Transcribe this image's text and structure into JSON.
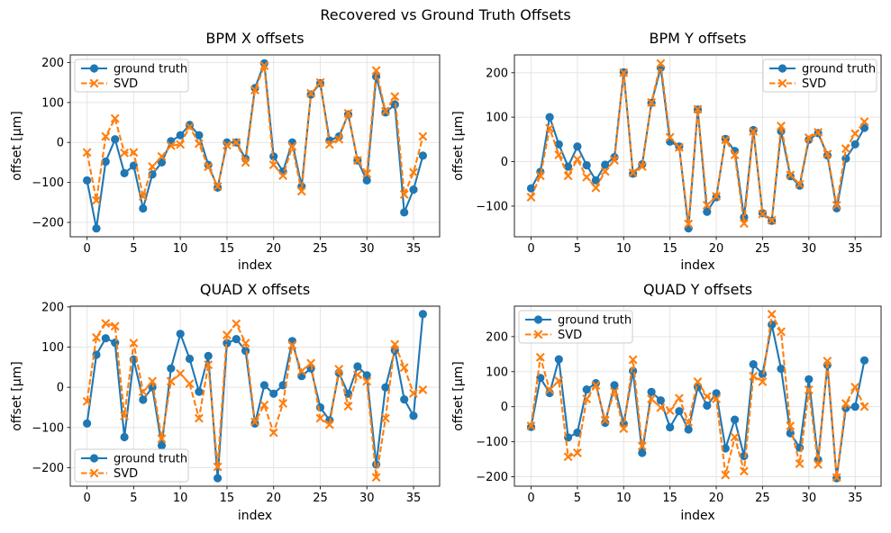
{
  "figure": {
    "suptitle": "Recovered vs Ground Truth Offsets"
  },
  "colors": {
    "ground_truth": "#1f77b4",
    "svd": "#ff7f0e",
    "grid": "#e5e5e5",
    "spine": "#262626",
    "legend_border": "#cccccc"
  },
  "chart_data": [
    {
      "type": "line",
      "id": "bpm-x",
      "title": "BPM X offsets",
      "xlabel": "index",
      "ylabel": "offset [µm]",
      "grid": true,
      "legend_loc": "upper left",
      "xticks": [
        0,
        5,
        10,
        15,
        20,
        25,
        30,
        35
      ],
      "yticks": [
        -200,
        -100,
        0,
        100,
        200
      ],
      "xlim": [
        -1.8,
        37.8
      ],
      "ylim": [
        -236,
        219
      ],
      "x": [
        0,
        1,
        2,
        3,
        4,
        5,
        6,
        7,
        8,
        9,
        10,
        11,
        12,
        13,
        14,
        15,
        16,
        17,
        18,
        19,
        20,
        21,
        22,
        23,
        24,
        25,
        26,
        27,
        28,
        29,
        30,
        31,
        32,
        33,
        34,
        35,
        36
      ],
      "series": [
        {
          "name": "ground truth",
          "color": "#1f77b4",
          "line": "solid",
          "marker": "circle",
          "values": [
            -95,
            -215,
            -48,
            8,
            -77,
            -58,
            -165,
            -80,
            -50,
            3,
            18,
            44,
            18,
            -56,
            -113,
            0,
            0,
            -41,
            136,
            198,
            -35,
            -73,
            0,
            -110,
            120,
            148,
            5,
            15,
            70,
            -45,
            -95,
            165,
            75,
            95,
            -175,
            -118,
            -33
          ]
        },
        {
          "name": "SVD",
          "color": "#ff7f0e",
          "line": "dashed",
          "marker": "x",
          "values": [
            -25,
            -145,
            15,
            60,
            -26,
            -25,
            -135,
            -60,
            -35,
            -8,
            -5,
            39,
            -3,
            -61,
            -110,
            -7,
            0,
            -50,
            131,
            192,
            -56,
            -83,
            -10,
            -122,
            123,
            150,
            -5,
            8,
            73,
            -45,
            -78,
            180,
            78,
            115,
            -130,
            -75,
            15
          ]
        }
      ]
    },
    {
      "type": "line",
      "id": "bpm-y",
      "title": "BPM Y offsets",
      "xlabel": "index",
      "ylabel": "offset [µm]",
      "grid": true,
      "legend_loc": "upper right",
      "xticks": [
        0,
        5,
        10,
        15,
        20,
        25,
        30,
        35
      ],
      "yticks": [
        -100,
        0,
        100,
        200
      ],
      "xlim": [
        -1.8,
        37.8
      ],
      "ylim": [
        -169,
        240
      ],
      "x": [
        0,
        1,
        2,
        3,
        4,
        5,
        6,
        7,
        8,
        9,
        10,
        11,
        12,
        13,
        14,
        15,
        16,
        17,
        18,
        19,
        20,
        21,
        22,
        23,
        24,
        25,
        26,
        27,
        28,
        29,
        30,
        31,
        32,
        33,
        34,
        35,
        36
      ],
      "series": [
        {
          "name": "ground truth",
          "color": "#1f77b4",
          "line": "solid",
          "marker": "circle",
          "values": [
            -60,
            -23,
            100,
            39,
            -11,
            34,
            -8,
            -42,
            -7,
            10,
            201,
            -27,
            -6,
            132,
            211,
            45,
            34,
            -150,
            117,
            -113,
            -80,
            51,
            24,
            -125,
            71,
            -116,
            -133,
            68,
            -33,
            -54,
            49,
            64,
            14,
            -105,
            7,
            39,
            76
          ]
        },
        {
          "name": "SVD",
          "color": "#ff7f0e",
          "line": "dashed",
          "marker": "x",
          "values": [
            -80,
            -32,
            75,
            15,
            -32,
            5,
            -35,
            -59,
            -22,
            3,
            200,
            -25,
            -11,
            133,
            221,
            55,
            32,
            -140,
            118,
            -98,
            -78,
            49,
            15,
            -139,
            68,
            -118,
            -132,
            80,
            -30,
            -51,
            54,
            66,
            17,
            -98,
            29,
            63,
            90
          ]
        }
      ]
    },
    {
      "type": "line",
      "id": "quad-x",
      "title": "QUAD X offsets",
      "xlabel": "index",
      "ylabel": "offset [µm]",
      "grid": true,
      "legend_loc": "lower left",
      "xticks": [
        0,
        5,
        10,
        15,
        20,
        25,
        30,
        35
      ],
      "yticks": [
        -200,
        -100,
        0,
        100,
        200
      ],
      "xlim": [
        -1.8,
        37.8
      ],
      "ylim": [
        -246,
        202
      ],
      "x": [
        0,
        1,
        2,
        3,
        4,
        5,
        6,
        7,
        8,
        9,
        10,
        11,
        12,
        13,
        14,
        15,
        16,
        17,
        18,
        19,
        20,
        21,
        22,
        23,
        24,
        25,
        26,
        27,
        28,
        29,
        30,
        31,
        32,
        33,
        34,
        35,
        36
      ],
      "series": [
        {
          "name": "ground truth",
          "color": "#1f77b4",
          "line": "solid",
          "marker": "circle",
          "values": [
            -90,
            81,
            122,
            111,
            -124,
            69,
            -31,
            0,
            -145,
            47,
            133,
            71,
            -11,
            78,
            -226,
            110,
            120,
            91,
            -90,
            5,
            -16,
            5,
            115,
            28,
            47,
            -50,
            -82,
            36,
            -16,
            52,
            30,
            -192,
            0,
            92,
            -30,
            -71,
            182
          ]
        },
        {
          "name": "SVD",
          "color": "#ff7f0e",
          "line": "dashed",
          "marker": "x",
          "values": [
            -35,
            124,
            159,
            152,
            -71,
            110,
            -11,
            15,
            -128,
            15,
            34,
            9,
            -77,
            56,
            -198,
            130,
            158,
            110,
            -86,
            -44,
            -113,
            -40,
            105,
            40,
            60,
            -77,
            -93,
            45,
            -47,
            31,
            15,
            -224,
            -77,
            107,
            49,
            -15,
            -6
          ]
        }
      ]
    },
    {
      "type": "line",
      "id": "quad-y",
      "title": "QUAD Y offsets",
      "xlabel": "index",
      "ylabel": "offset [µm]",
      "grid": true,
      "legend_loc": "upper left",
      "xticks": [
        0,
        5,
        10,
        15,
        20,
        25,
        30,
        35
      ],
      "yticks": [
        -200,
        -100,
        0,
        100,
        200
      ],
      "xlim": [
        -1.8,
        37.8
      ],
      "ylim": [
        -227,
        287
      ],
      "x": [
        0,
        1,
        2,
        3,
        4,
        5,
        6,
        7,
        8,
        9,
        10,
        11,
        12,
        13,
        14,
        15,
        16,
        17,
        18,
        19,
        20,
        21,
        22,
        23,
        24,
        25,
        26,
        27,
        28,
        29,
        30,
        31,
        32,
        33,
        34,
        35,
        36
      ],
      "series": [
        {
          "name": "ground truth",
          "color": "#1f77b4",
          "line": "solid",
          "marker": "circle",
          "values": [
            -58,
            82,
            39,
            135,
            -88,
            -74,
            49,
            67,
            -46,
            61,
            -49,
            102,
            -132,
            42,
            18,
            -59,
            -13,
            -65,
            56,
            3,
            38,
            -119,
            -37,
            -141,
            121,
            93,
            234,
            108,
            -76,
            -117,
            78,
            -152,
            119,
            -204,
            -4,
            0,
            132
          ]
        },
        {
          "name": "SVD",
          "color": "#ff7f0e",
          "line": "dashed",
          "marker": "x",
          "values": [
            -55,
            141,
            48,
            74,
            -143,
            -132,
            22,
            61,
            -39,
            43,
            -63,
            134,
            -113,
            22,
            -3,
            -11,
            24,
            -44,
            71,
            29,
            22,
            -195,
            -87,
            -184,
            87,
            71,
            264,
            214,
            -55,
            -163,
            48,
            -165,
            130,
            -202,
            9,
            56,
            0
          ]
        }
      ]
    }
  ]
}
